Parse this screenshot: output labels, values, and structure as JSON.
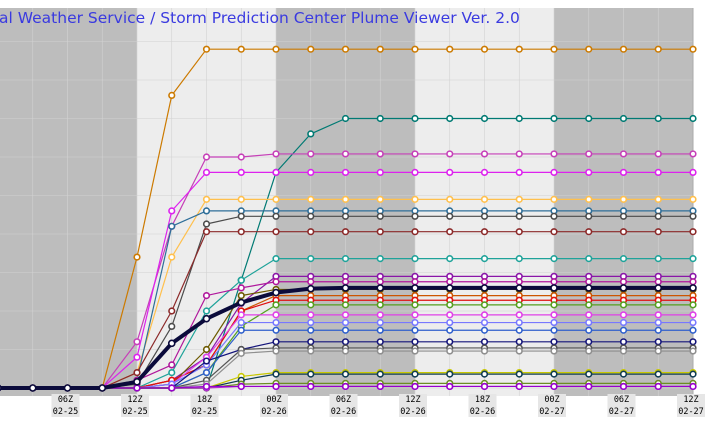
{
  "page": {
    "title": "al Weather Service / Storm Prediction Center Plume Viewer Ver. 2.0"
  },
  "colors": {
    "night_band": "#bdbdbd",
    "day_band": "#ededed",
    "grid": "#d2d2d2",
    "title": "#3a3ae0",
    "mean_line": "#0b0b3b"
  },
  "chart_data": {
    "type": "line",
    "title": "al Weather Service / Storm Prediction Center Plume Viewer Ver. 2.0",
    "xlabel": "",
    "ylabel": "",
    "grid": true,
    "legend": "none",
    "x_ticks": [
      {
        "hour": 6,
        "top": "06Z",
        "bottom": "02-25"
      },
      {
        "hour": 12,
        "top": "12Z",
        "bottom": "02-25"
      },
      {
        "hour": 18,
        "top": "18Z",
        "bottom": "02-25"
      },
      {
        "hour": 24,
        "top": "00Z",
        "bottom": "02-26"
      },
      {
        "hour": 30,
        "top": "06Z",
        "bottom": "02-26"
      },
      {
        "hour": 36,
        "top": "12Z",
        "bottom": "02-26"
      },
      {
        "hour": 42,
        "top": "18Z",
        "bottom": "02-26"
      },
      {
        "hour": 48,
        "top": "00Z",
        "bottom": "02-27"
      },
      {
        "hour": 54,
        "top": "06Z",
        "bottom": "02-27"
      },
      {
        "hour": 60,
        "top": "12Z",
        "bottom": "02-27"
      }
    ],
    "xlim": [
      0,
      60
    ],
    "ylim": [
      0,
      4.5
    ],
    "night_bands": [
      [
        0,
        12
      ],
      [
        24,
        36
      ],
      [
        48,
        60
      ]
    ],
    "hours": [
      0,
      3,
      6,
      9,
      12,
      15,
      18,
      21,
      24,
      27,
      30,
      33,
      36,
      39,
      42,
      45,
      48,
      51,
      54,
      57,
      60
    ],
    "mean": {
      "color": "#0b0b3b",
      "values": [
        0,
        0,
        0,
        0,
        0.08,
        0.58,
        0.9,
        1.11,
        1.24,
        1.29,
        1.3,
        1.3,
        1.3,
        1.3,
        1.3,
        1.3,
        1.3,
        1.3,
        1.3,
        1.3,
        1.3
      ]
    },
    "series": [
      {
        "color": "#cc7a00",
        "values": [
          0,
          0,
          0,
          0,
          1.7,
          3.8,
          4.4,
          4.4,
          4.4,
          4.4,
          4.4,
          4.4,
          4.4,
          4.4,
          4.4,
          4.4,
          4.4,
          4.4,
          4.4,
          4.4,
          4.4
        ]
      },
      {
        "color": "#007a73",
        "values": [
          0,
          0,
          0,
          0,
          0,
          0,
          0,
          1.4,
          2.8,
          3.3,
          3.5,
          3.5,
          3.5,
          3.5,
          3.5,
          3.5,
          3.5,
          3.5,
          3.5,
          3.5,
          3.5
        ]
      },
      {
        "color": "#c63fb8",
        "values": [
          0,
          0,
          0,
          0,
          0.6,
          2.1,
          3.0,
          3.0,
          3.04,
          3.04,
          3.04,
          3.04,
          3.04,
          3.04,
          3.04,
          3.04,
          3.04,
          3.04,
          3.04,
          3.04,
          3.04
        ]
      },
      {
        "color": "#dd22ee",
        "values": [
          0,
          0,
          0,
          0,
          0.4,
          2.3,
          2.8,
          2.8,
          2.8,
          2.8,
          2.8,
          2.8,
          2.8,
          2.8,
          2.8,
          2.8,
          2.8,
          2.8,
          2.8,
          2.8,
          2.8
        ]
      },
      {
        "color": "#ffc04d",
        "values": [
          0,
          0,
          0,
          0,
          0.2,
          1.7,
          2.45,
          2.45,
          2.45,
          2.45,
          2.45,
          2.45,
          2.45,
          2.45,
          2.45,
          2.45,
          2.45,
          2.45,
          2.45,
          2.45,
          2.45
        ]
      },
      {
        "color": "#2e6e99",
        "values": [
          0,
          0,
          0,
          0,
          0.1,
          2.1,
          2.3,
          2.3,
          2.3,
          2.3,
          2.3,
          2.3,
          2.3,
          2.3,
          2.3,
          2.3,
          2.3,
          2.3,
          2.3,
          2.3,
          2.3
        ]
      },
      {
        "color": "#4b4b4b",
        "values": [
          0,
          0,
          0,
          0,
          0.05,
          0.8,
          2.13,
          2.23,
          2.23,
          2.23,
          2.23,
          2.23,
          2.23,
          2.23,
          2.23,
          2.23,
          2.23,
          2.23,
          2.23,
          2.23,
          2.23
        ]
      },
      {
        "color": "#8c2a2a",
        "values": [
          0,
          0,
          0,
          0,
          0.2,
          1.0,
          2.03,
          2.03,
          2.03,
          2.03,
          2.03,
          2.03,
          2.03,
          2.03,
          2.03,
          2.03,
          2.03,
          2.03,
          2.03,
          2.03,
          2.03
        ]
      },
      {
        "color": "#1fa39a",
        "values": [
          0,
          0,
          0,
          0,
          0,
          0.2,
          1.0,
          1.4,
          1.68,
          1.68,
          1.68,
          1.68,
          1.68,
          1.68,
          1.68,
          1.68,
          1.68,
          1.68,
          1.68,
          1.68,
          1.68
        ]
      },
      {
        "color": "#8a16a8",
        "values": [
          0,
          0,
          0,
          0,
          0,
          0.1,
          0.4,
          1.1,
          1.45,
          1.45,
          1.45,
          1.45,
          1.45,
          1.45,
          1.45,
          1.45,
          1.45,
          1.45,
          1.45,
          1.45,
          1.45
        ]
      },
      {
        "color": "#b0179c",
        "values": [
          0,
          0,
          0,
          0,
          0.1,
          0.3,
          1.2,
          1.3,
          1.38,
          1.38,
          1.38,
          1.38,
          1.38,
          1.38,
          1.38,
          1.38,
          1.38,
          1.38,
          1.38,
          1.38,
          1.38
        ]
      },
      {
        "color": "#6d5a00",
        "values": [
          0,
          0,
          0,
          0,
          0,
          0.05,
          0.5,
          1.2,
          1.28,
          1.28,
          1.28,
          1.28,
          1.28,
          1.28,
          1.28,
          1.28,
          1.28,
          1.28,
          1.28,
          1.28,
          1.28
        ]
      },
      {
        "color": "#cc5500",
        "values": [
          0,
          0,
          0,
          0,
          0,
          0.1,
          0.3,
          1.0,
          1.2,
          1.2,
          1.2,
          1.2,
          1.2,
          1.2,
          1.2,
          1.2,
          1.2,
          1.2,
          1.2,
          1.2,
          1.2
        ]
      },
      {
        "color": "#e01010",
        "values": [
          0,
          0,
          0,
          0,
          0,
          0.1,
          0.3,
          1.0,
          1.14,
          1.14,
          1.14,
          1.14,
          1.14,
          1.14,
          1.14,
          1.14,
          1.14,
          1.14,
          1.14,
          1.14,
          1.14
        ]
      },
      {
        "color": "#55a020",
        "values": [
          0,
          0,
          0,
          0,
          0,
          0,
          0.2,
          0.8,
          1.08,
          1.08,
          1.08,
          1.08,
          1.08,
          1.08,
          1.08,
          1.08,
          1.08,
          1.08,
          1.08,
          1.08,
          1.08
        ]
      },
      {
        "color": "#e040e8",
        "values": [
          0,
          0,
          0,
          0,
          0,
          0.05,
          0.4,
          0.95,
          0.95,
          0.95,
          0.95,
          0.95,
          0.95,
          0.95,
          0.95,
          0.95,
          0.95,
          0.95,
          0.95,
          0.95,
          0.95
        ]
      },
      {
        "color": "#7878ff",
        "values": [
          0,
          0,
          0,
          0,
          0,
          0.05,
          0.3,
          0.85,
          0.85,
          0.85,
          0.85,
          0.85,
          0.85,
          0.85,
          0.85,
          0.85,
          0.85,
          0.85,
          0.85,
          0.85,
          0.85
        ]
      },
      {
        "color": "#2e5fcc",
        "values": [
          0,
          0,
          0,
          0,
          0,
          0,
          0.2,
          0.75,
          0.75,
          0.75,
          0.75,
          0.75,
          0.75,
          0.75,
          0.75,
          0.75,
          0.75,
          0.75,
          0.75,
          0.75,
          0.75
        ]
      },
      {
        "color": "#14147a",
        "values": [
          0,
          0,
          0,
          0,
          0,
          0,
          0.35,
          0.5,
          0.6,
          0.6,
          0.6,
          0.6,
          0.6,
          0.6,
          0.6,
          0.6,
          0.6,
          0.6,
          0.6,
          0.6,
          0.6
        ]
      },
      {
        "color": "#555555",
        "values": [
          0,
          0,
          0,
          0,
          0,
          0,
          0.1,
          0.5,
          0.52,
          0.52,
          0.52,
          0.52,
          0.52,
          0.52,
          0.52,
          0.52,
          0.52,
          0.52,
          0.52,
          0.52,
          0.52
        ]
      },
      {
        "color": "#8f8f8f",
        "values": [
          0,
          0,
          0,
          0,
          0,
          0,
          0.05,
          0.45,
          0.48,
          0.48,
          0.48,
          0.48,
          0.48,
          0.48,
          0.48,
          0.48,
          0.48,
          0.48,
          0.48,
          0.48,
          0.48
        ]
      },
      {
        "color": "#c8c800",
        "values": [
          0,
          0,
          0,
          0,
          0,
          0,
          0,
          0.15,
          0.2,
          0.2,
          0.2,
          0.2,
          0.2,
          0.2,
          0.2,
          0.2,
          0.2,
          0.2,
          0.2,
          0.2,
          0.2
        ]
      },
      {
        "color": "#0f3c52",
        "values": [
          0,
          0,
          0,
          0,
          0,
          0,
          0,
          0.1,
          0.18,
          0.18,
          0.18,
          0.18,
          0.18,
          0.18,
          0.18,
          0.18,
          0.18,
          0.18,
          0.18,
          0.18,
          0.18
        ]
      },
      {
        "color": "#6b8e23",
        "values": [
          0,
          0,
          0,
          0,
          0,
          0,
          0,
          0.05,
          0.06,
          0.06,
          0.06,
          0.06,
          0.06,
          0.06,
          0.06,
          0.06,
          0.06,
          0.06,
          0.06,
          0.06,
          0.06
        ]
      },
      {
        "color": "#b030d0",
        "values": [
          0,
          0,
          0,
          0,
          0,
          0,
          0,
          0.02,
          0.02,
          0.02,
          0.02,
          0.02,
          0.02,
          0.02,
          0.02,
          0.02,
          0.02,
          0.02,
          0.02,
          0.02,
          0.02
        ]
      },
      {
        "color": "#9900cc",
        "values": [
          0,
          0,
          0,
          0,
          0,
          0,
          0.02,
          0.02,
          0.02,
          0.02,
          0.02,
          0.02,
          0.02,
          0.02,
          0.02,
          0.02,
          0.02,
          0.02,
          0.02,
          0.02,
          0.02
        ]
      }
    ]
  }
}
